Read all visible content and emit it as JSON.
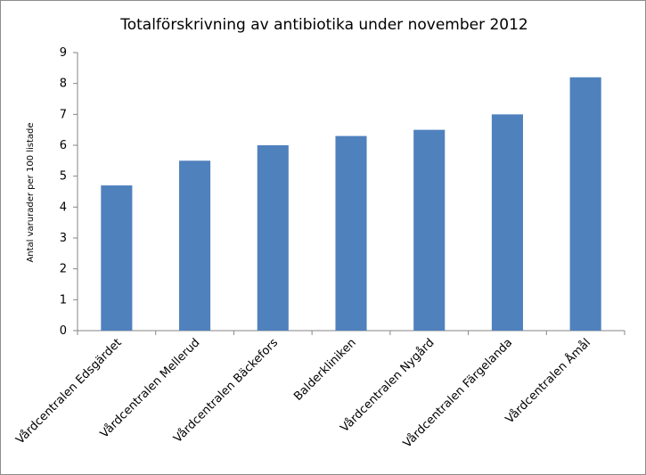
{
  "chart_data": {
    "type": "bar",
    "title": "Totalförskrivning av antibiotika under november 2012",
    "xlabel": "",
    "ylabel": "Antal varurader per 100 listade",
    "categories": [
      "Vårdcentralen Edsgärdet",
      "Vårdcentralen Mellerud",
      "Vårdcentralen Bäckefors",
      "Balderkliniken",
      "Vårdcentralen Nygård",
      "Vårdcentralen Färgelanda",
      "Vårdcentralen Åmål"
    ],
    "values": [
      4.7,
      5.5,
      6.0,
      6.3,
      6.5,
      7.0,
      8.2
    ],
    "ylim": [
      0,
      9
    ],
    "yticks": [
      "0",
      "1",
      "2",
      "3",
      "4",
      "5",
      "6",
      "7",
      "8",
      "9"
    ],
    "grid": false,
    "legend": "none",
    "bar_color": "#4f81bd",
    "axis_color": "#868686"
  }
}
